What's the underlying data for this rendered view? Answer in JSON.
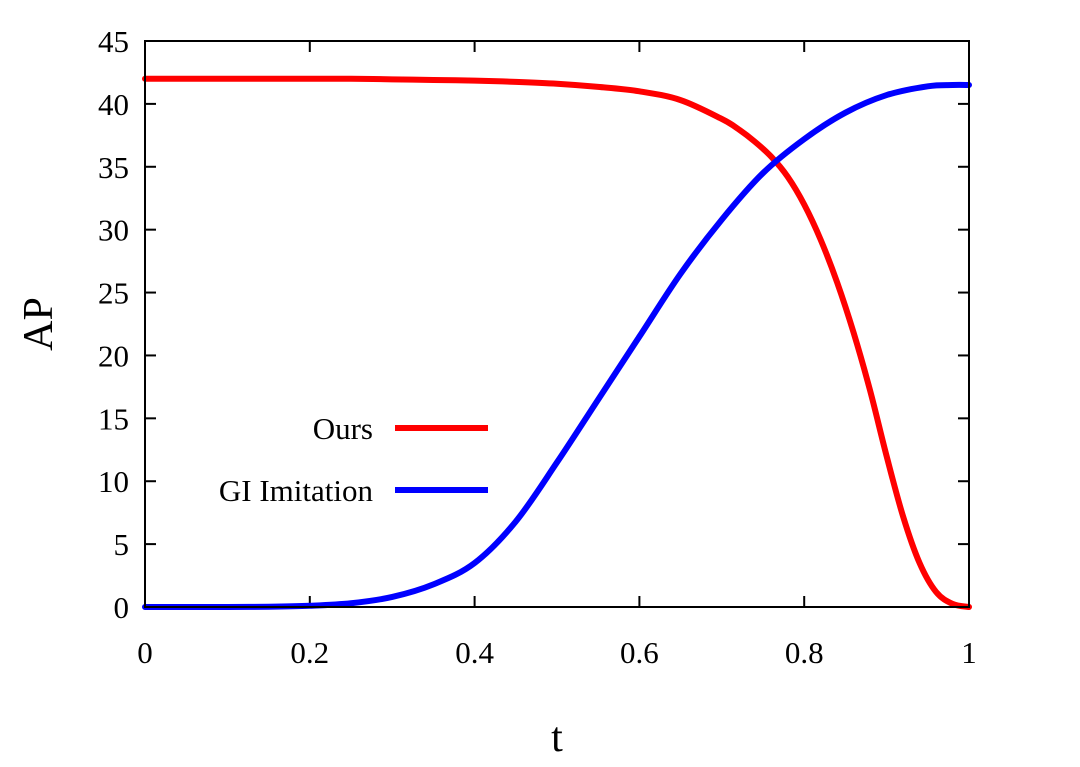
{
  "chart_data": {
    "type": "line",
    "xlabel": "t",
    "ylabel": "AP",
    "xlim": [
      0,
      1
    ],
    "ylim": [
      0,
      45
    ],
    "x_ticks": [
      0,
      0.2,
      0.4,
      0.6,
      0.8,
      1
    ],
    "x_tick_labels": [
      "0",
      "0.2",
      "0.4",
      "0.6",
      "0.8",
      "1"
    ],
    "y_ticks": [
      0,
      5,
      10,
      15,
      20,
      25,
      30,
      35,
      40,
      45
    ],
    "y_tick_labels": [
      "0",
      "5",
      "10",
      "15",
      "20",
      "25",
      "30",
      "35",
      "40",
      "45"
    ],
    "grid": false,
    "legend_position": "center-left",
    "series": [
      {
        "name": "Ours",
        "color": "#ff0000",
        "x": [
          0,
          0.05,
          0.1,
          0.15,
          0.2,
          0.25,
          0.3,
          0.35,
          0.4,
          0.45,
          0.5,
          0.55,
          0.6,
          0.65,
          0.7,
          0.72,
          0.74,
          0.76,
          0.78,
          0.8,
          0.82,
          0.84,
          0.86,
          0.88,
          0.9,
          0.92,
          0.94,
          0.96,
          0.98,
          1.0
        ],
        "y": [
          42.0,
          42.0,
          42.0,
          42.0,
          42.0,
          42.0,
          41.95,
          41.9,
          41.85,
          41.75,
          41.6,
          41.35,
          41.0,
          40.3,
          38.8,
          38.0,
          37.0,
          35.8,
          34.2,
          32.0,
          29.2,
          25.8,
          21.8,
          17.2,
          12.0,
          7.2,
          3.5,
          1.2,
          0.25,
          0.0
        ]
      },
      {
        "name": "GI Imitation",
        "color": "#0000ff",
        "x": [
          0,
          0.05,
          0.1,
          0.15,
          0.2,
          0.25,
          0.3,
          0.35,
          0.4,
          0.45,
          0.5,
          0.55,
          0.6,
          0.65,
          0.7,
          0.75,
          0.8,
          0.85,
          0.9,
          0.95,
          0.98,
          1.0
        ],
        "y": [
          0.0,
          0.0,
          0.0,
          0.02,
          0.1,
          0.3,
          0.8,
          1.8,
          3.5,
          6.8,
          11.5,
          16.5,
          21.5,
          26.5,
          30.8,
          34.5,
          37.2,
          39.3,
          40.7,
          41.4,
          41.5,
          41.5
        ]
      }
    ]
  }
}
